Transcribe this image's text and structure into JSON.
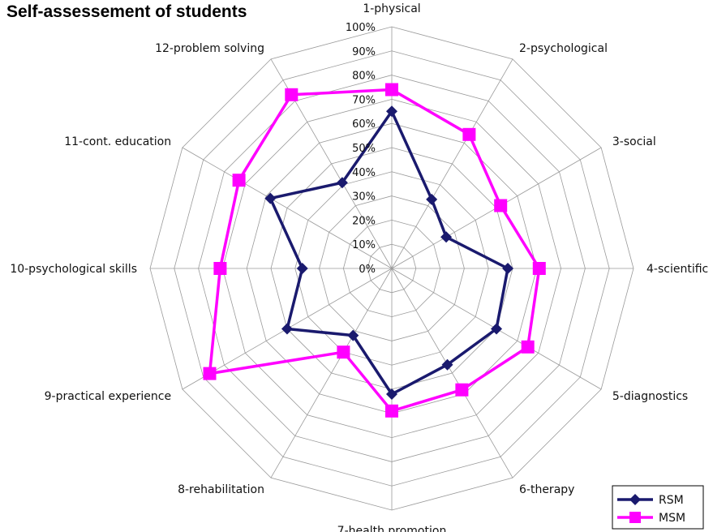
{
  "chart_data": {
    "type": "radar",
    "title": "Self-assessement of students",
    "categories": [
      "1-physical",
      "2-psychological",
      "3-social",
      "4-scientific",
      "5-diagnostics",
      "6-therapy",
      "7-health promotion",
      "8-rehabilitation",
      "9-practical experience",
      "10-psychological skills",
      "11-cont. education",
      "12-problem solving"
    ],
    "ticks": [
      "0%",
      "10%",
      "20%",
      "30%",
      "40%",
      "50%",
      "60%",
      "70%",
      "80%",
      "90%",
      "100%"
    ],
    "rmax": 100,
    "grid": true,
    "legend": "bottom-right",
    "series": [
      {
        "name": "RSM",
        "color": "#1a1a6e",
        "marker": "diamond",
        "values": [
          65,
          33,
          26,
          48,
          50,
          46,
          52,
          32,
          50,
          37,
          58,
          41
        ]
      },
      {
        "name": "MSM",
        "color": "#ff00ff",
        "marker": "square",
        "values": [
          74,
          64,
          52,
          61,
          65,
          58,
          59,
          40,
          87,
          71,
          73,
          83
        ]
      }
    ]
  }
}
